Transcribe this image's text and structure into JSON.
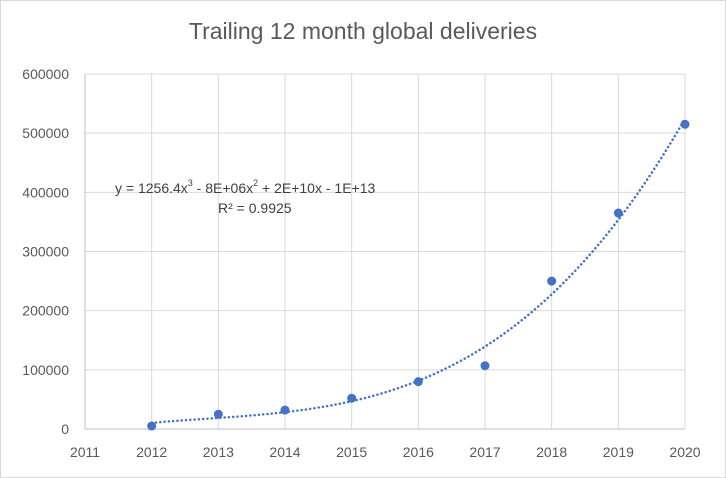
{
  "chart_data": {
    "type": "scatter",
    "title": "Trailing 12 month global deliveries",
    "xlabel": "",
    "ylabel": "",
    "xlim": [
      2011,
      2020
    ],
    "ylim": [
      0,
      600000
    ],
    "x_ticks": [
      "2011",
      "2012",
      "2013",
      "2014",
      "2015",
      "2016",
      "2017",
      "2018",
      "2019",
      "2020"
    ],
    "y_ticks": [
      "0",
      "100000",
      "200000",
      "300000",
      "400000",
      "500000",
      "600000"
    ],
    "grid": true,
    "legend": "none",
    "series": [
      {
        "color": "#4472c4",
        "points": [
          {
            "x": 2012,
            "y": 5000
          },
          {
            "x": 2013,
            "y": 25000
          },
          {
            "x": 2014,
            "y": 32000
          },
          {
            "x": 2015,
            "y": 52000
          },
          {
            "x": 2016,
            "y": 80000
          },
          {
            "x": 2017,
            "y": 107000
          },
          {
            "x": 2018,
            "y": 250000
          },
          {
            "x": 2019,
            "y": 365000
          },
          {
            "x": 2020,
            "y": 515000
          }
        ]
      }
    ],
    "trendline": {
      "type": "polynomial",
      "order": 3,
      "style": "dotted",
      "color": "#4472c4",
      "equation": {
        "base": "y = 1256.4x",
        "exp1": "3",
        "mid": " - 8E+06x",
        "exp2": "2",
        "tail": " + 2E+10x - 1E+13"
      },
      "r_squared": "R² = 0.9925"
    }
  }
}
